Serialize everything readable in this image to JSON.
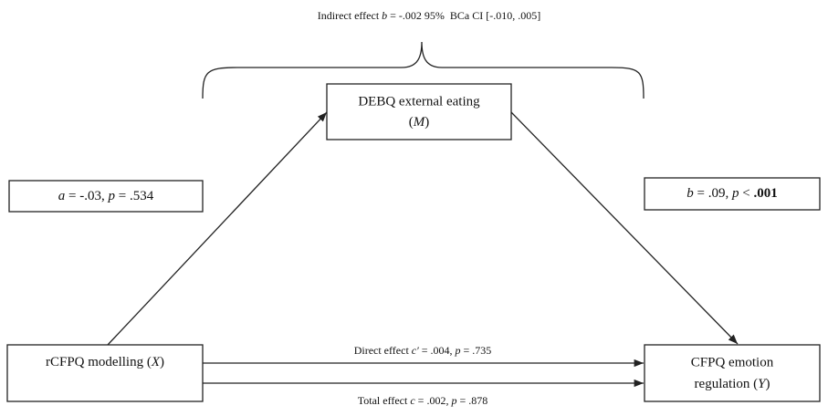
{
  "indirect_effect": [
    "Indirect effect ",
    "b",
    " = -.002 95%  BCa CI [-.010, .005]"
  ],
  "nodes": {
    "mediator": {
      "line1": "DEBQ external eating",
      "line2": [
        "(",
        "M",
        ")"
      ]
    },
    "predictor": {
      "line1": [
        "rCFPQ modelling (",
        "X",
        ")"
      ]
    },
    "outcome": {
      "line1": "CFPQ emotion",
      "line2": [
        "regulation (",
        "Y",
        ")"
      ]
    }
  },
  "paths": {
    "a": [
      "a",
      " = -.03, ",
      "p",
      " = .534"
    ],
    "b": [
      "b",
      " = .09, ",
      "p",
      " < ",
      ".001"
    ],
    "direct": [
      "Direct effect ",
      "c′",
      " = .004, ",
      "p",
      " = .735"
    ],
    "total": [
      "Total effect ",
      "c",
      " = .002, ",
      "p",
      " = .878"
    ]
  }
}
